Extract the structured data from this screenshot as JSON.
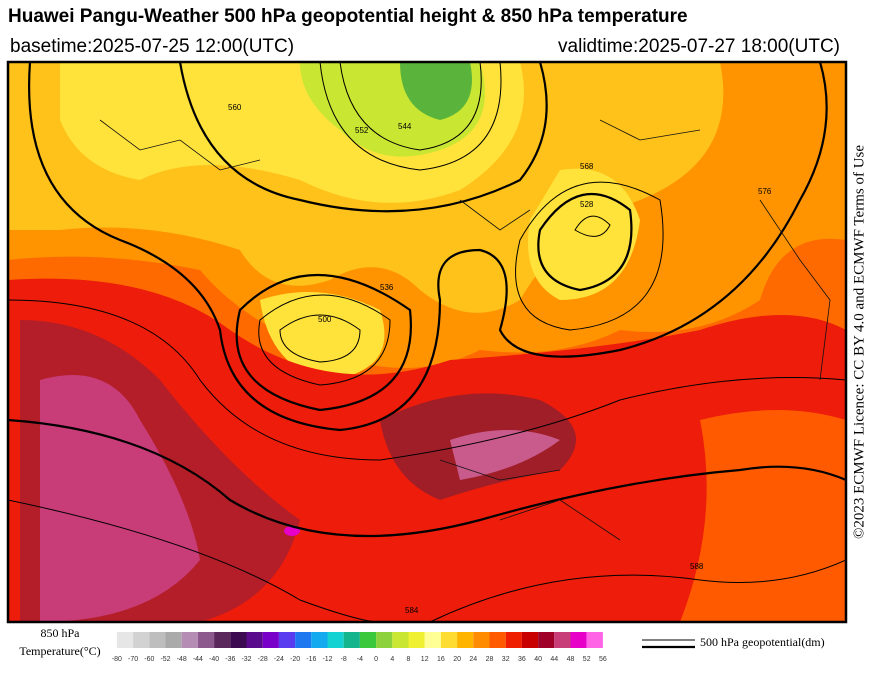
{
  "header": {
    "title": "Huawei Pangu-Weather 500 hPa geopotential height & 850 hPa temperature",
    "basetime": "basetime:2025-07-25 12:00(UTC)",
    "validtime": "validtime:2025-07-27 18:00(UTC)"
  },
  "license": "©2023 ECMWF Licence: CC BY 4.0 and ECMWF Terms of Use",
  "map_labels": [
    "500",
    "560",
    "552",
    "544",
    "584",
    "568",
    "576",
    "588",
    "536",
    "528"
  ],
  "colorbar": {
    "title_1": "850 hPa",
    "title_2": "Temperature(°C)",
    "ticks": [
      -80,
      -70,
      -60,
      -52,
      -48,
      -44,
      -40,
      -36,
      -32,
      -28,
      -24,
      -20,
      -16,
      -12,
      -8,
      -4,
      0,
      4,
      8,
      12,
      16,
      20,
      24,
      28,
      32,
      36,
      40,
      44,
      48,
      52,
      56
    ],
    "colors": [
      "#e6e6e6",
      "#d2d2d2",
      "#bebebe",
      "#aaaaaa",
      "#b48cb4",
      "#8c5a8c",
      "#5a285a",
      "#3c0a50",
      "#5a0a8c",
      "#7800c8",
      "#5a3cf0",
      "#1e78f0",
      "#14aaf0",
      "#14d2d2",
      "#14b48c",
      "#3cc83c",
      "#8cd23c",
      "#c8e632",
      "#f0f032",
      "#ffff96",
      "#ffdc32",
      "#ffb400",
      "#ff8c00",
      "#ff5a00",
      "#f01e00",
      "#c80000",
      "#a00028",
      "#c83c78",
      "#e600c8",
      "#ff64e6",
      "#ffb4f0"
    ]
  },
  "contour_legend": "500 hPa geopotential(dm)"
}
